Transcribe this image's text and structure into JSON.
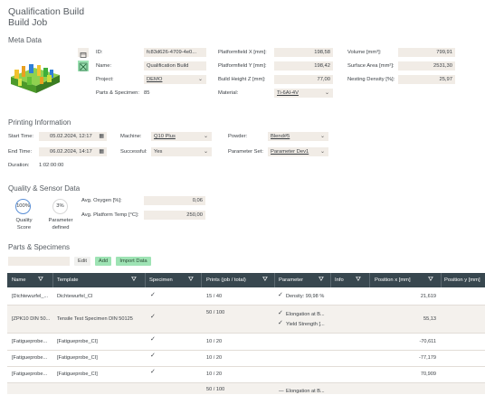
{
  "header": {
    "title": "Qualification Build",
    "subtitle": "Build Job"
  },
  "meta": {
    "section_title": "Meta Data",
    "id_label": "ID:",
    "id_value": "fc83d626-4709-4e0...",
    "name_label": "Name:",
    "name_value": "Qualification Build",
    "project_label": "Project:",
    "project_value": "DEMO",
    "parts_label": "Parts & Specimen:",
    "parts_value": "85",
    "pfx_label": "Platformfield X [mm]:",
    "pfx_value": "198,58",
    "pfy_label": "Platformfield Y [mm]:",
    "pfy_value": "198,42",
    "bhz_label": "Build Height Z [mm]:",
    "bhz_value": "77,00",
    "material_label": "Material:",
    "material_value": "Ti-6Al-4V",
    "volume_label": "Volume [mm³]:",
    "volume_value": "799,91",
    "surface_label": "Surface Area [mm²]:",
    "surface_value": "2531,30",
    "nesting_label": "Nesting Density [%]:",
    "nesting_value": "25,97"
  },
  "printing": {
    "section_title": "Printing Information",
    "start_label": "Start Time:",
    "start_value": "05.02.2024, 12:17",
    "end_label": "End Time:",
    "end_value": "06.02.2024, 14:17",
    "duration_label": "Duration:",
    "duration_value": "1:02:00:00",
    "machine_label": "Machine:",
    "machine_value": "Q10 Plus",
    "successful_label": "Successful:",
    "successful_value": "Yes",
    "powder_label": "Powder:",
    "powder_value": "Blend#5",
    "paramset_label": "Parameter Set:",
    "paramset_value": "Parameter Dev1"
  },
  "quality": {
    "section_title": "Quality & Sensor Data",
    "score_value": "100%",
    "score_label1": "Quality",
    "score_label2": "Score",
    "params_value": "3%",
    "params_label1": "Parameter",
    "params_label2": "defined",
    "oxygen_label": "Avg. Oxygen [%]:",
    "oxygen_value": "0,06",
    "temp_label": "Avg. Platform Temp [°C]:",
    "temp_value": "250,00"
  },
  "parts": {
    "section_title": "Parts & Specimens",
    "edit_label": "Edit",
    "add_label": "Add",
    "import_label": "Import Data",
    "columns": [
      "Name",
      "Template",
      "Specimen",
      "Prints (job / total)",
      "Parameter",
      "Info",
      "Position x [mm]",
      "Position y [mm]"
    ],
    "rows": [
      {
        "name": "[Dichtewurfel_...",
        "template": "Dichtewurfel_CI",
        "prints": "15 / 40",
        "param1": "Density: 99,98 %",
        "param2": "",
        "posx": "21,619"
      },
      {
        "name": "[ZPK10 DIN 50...",
        "template": "Tensile Test Specimen DIN 50125",
        "prints": "50 / 100",
        "param1": "Elongation at B...",
        "param2": "Yield Strength [...",
        "posx": "55,13"
      },
      {
        "name": "[Fatigueprobe...",
        "template": "[Fatigueprobe_CI]",
        "prints": "10 / 20",
        "param1": "",
        "param2": "",
        "posx": "-70,611"
      },
      {
        "name": "[Fatigueprobe...",
        "template": "[Fatigueprobe_CI]",
        "prints": "10 / 20",
        "param1": "",
        "param2": "",
        "posx": "-77,179"
      },
      {
        "name": "[Fatigueprobe...",
        "template": "[Fatigueprobe_CI]",
        "prints": "10 / 20",
        "param1": "",
        "param2": "",
        "posx": "70,909"
      },
      {
        "name": "",
        "template": "",
        "prints": "50 / 100",
        "param1": "Elongation at B...",
        "param2": "",
        "posx": ""
      }
    ]
  }
}
